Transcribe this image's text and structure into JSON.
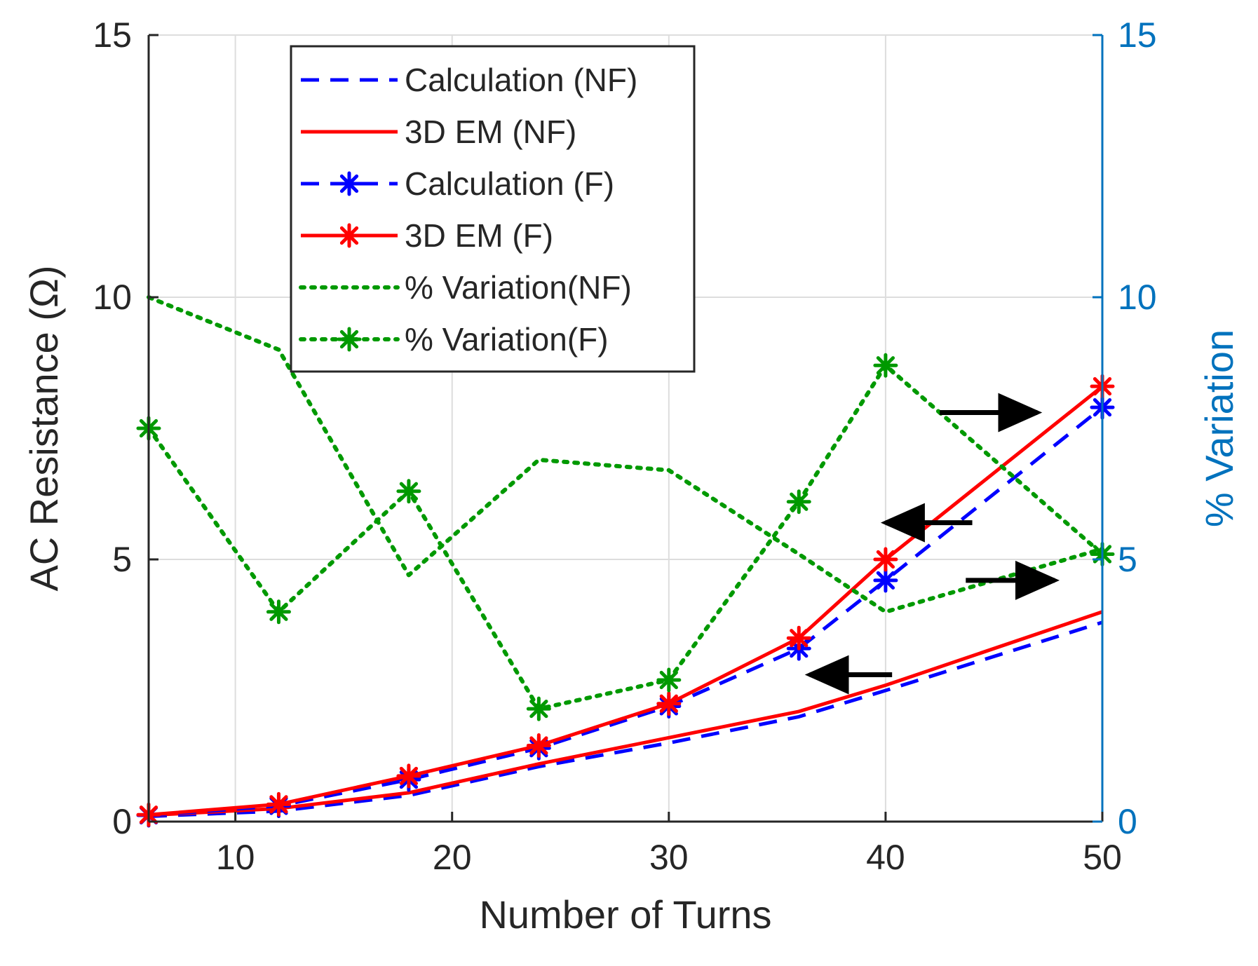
{
  "chart_data": {
    "type": "line",
    "xlabel": "Number of Turns",
    "ylabel_left": "AC Resistance (Ω)",
    "ylabel_right": "% Variation",
    "xlim": [
      6,
      50
    ],
    "ylim_left": [
      0,
      15
    ],
    "ylim_right": [
      0,
      15
    ],
    "xticks": [
      10,
      20,
      30,
      40,
      50
    ],
    "yticks_left": [
      0,
      5,
      10,
      15
    ],
    "yticks_right": [
      0,
      5,
      10,
      15
    ],
    "grid": true,
    "legend_position": "top-left",
    "colors": {
      "axis": "#262626",
      "right_axis": "#0072BD",
      "blue": "#0000FF",
      "red": "#FF0000",
      "green": "#009900",
      "grid": "#DDDDDD"
    },
    "series": [
      {
        "name": "Calculation (NF)",
        "axis": "left",
        "style": "dashed",
        "color": "blue",
        "marker": "none",
        "x": [
          6,
          12,
          18,
          24,
          30,
          36,
          40,
          50
        ],
        "y": [
          0.1,
          0.2,
          0.5,
          1.05,
          1.5,
          2.0,
          2.5,
          3.8
        ]
      },
      {
        "name": "3D EM (NF)",
        "axis": "left",
        "style": "solid",
        "color": "red",
        "marker": "none",
        "x": [
          6,
          12,
          18,
          24,
          30,
          36,
          40,
          50
        ],
        "y": [
          0.12,
          0.25,
          0.55,
          1.1,
          1.6,
          2.1,
          2.6,
          4.0
        ]
      },
      {
        "name": "Calculation (F)",
        "axis": "left",
        "style": "dashed",
        "color": "blue",
        "marker": "star",
        "x": [
          6,
          12,
          18,
          24,
          30,
          36,
          40,
          50
        ],
        "y": [
          0.12,
          0.3,
          0.8,
          1.4,
          2.2,
          3.3,
          4.6,
          7.9
        ]
      },
      {
        "name": "3D EM (F)",
        "axis": "left",
        "style": "solid",
        "color": "red",
        "marker": "star",
        "x": [
          6,
          12,
          18,
          24,
          30,
          36,
          40,
          50
        ],
        "y": [
          0.13,
          0.33,
          0.87,
          1.45,
          2.25,
          3.5,
          5.0,
          8.3
        ]
      },
      {
        "name": "% Variation(NF)",
        "axis": "right",
        "style": "dotted",
        "color": "green",
        "marker": "none",
        "x": [
          6,
          12,
          18,
          24,
          30,
          36,
          40,
          50
        ],
        "y": [
          10.0,
          9.0,
          4.7,
          6.9,
          6.7,
          5.1,
          4.0,
          5.2
        ]
      },
      {
        "name": "% Variation(F)",
        "axis": "right",
        "style": "dotted",
        "color": "green",
        "marker": "star",
        "x": [
          6,
          12,
          18,
          24,
          30,
          36,
          40,
          50
        ],
        "y": [
          7.5,
          4.0,
          6.3,
          2.15,
          2.7,
          6.1,
          8.7,
          5.1
        ]
      }
    ],
    "annotations": [
      {
        "type": "arrow",
        "direction": "right",
        "x_start": 42.5,
        "x_end": 47,
        "y": 7.8,
        "axis": "left"
      },
      {
        "type": "arrow",
        "direction": "left",
        "x_start": 44,
        "x_end": 40,
        "y": 5.7,
        "axis": "left"
      },
      {
        "type": "arrow",
        "direction": "right",
        "x_start": 43.7,
        "x_end": 47.8,
        "y": 4.6,
        "axis": "left"
      },
      {
        "type": "arrow",
        "direction": "left",
        "x_start": 40.3,
        "x_end": 36.5,
        "y": 2.8,
        "axis": "left"
      }
    ]
  }
}
